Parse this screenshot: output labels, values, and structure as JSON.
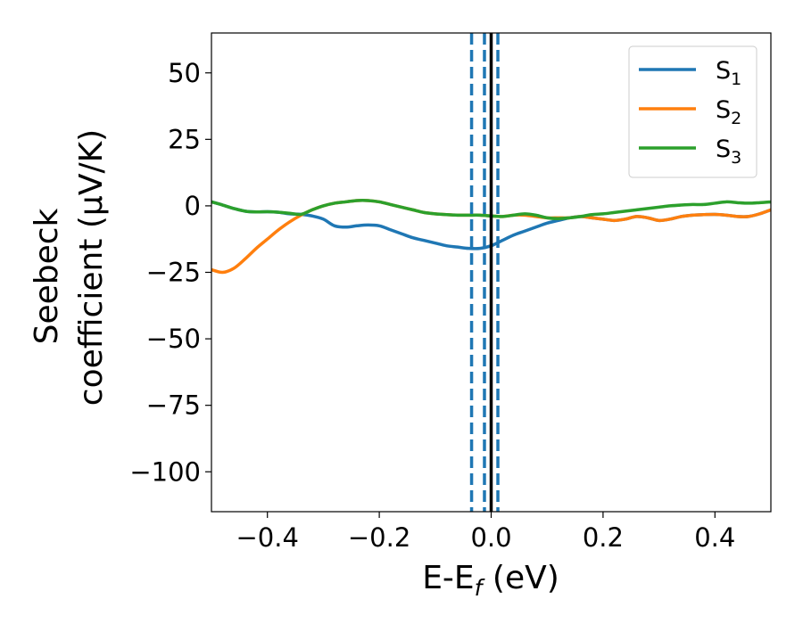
{
  "chart_data": {
    "type": "line",
    "xlabel": "E-E",
    "xlabel_sub": "f",
    "xlabel_unit": " (eV)",
    "ylabel_lines": [
      "Seebeck",
      "coefficient  (μV/K)"
    ],
    "xlim": [
      -0.5,
      0.5
    ],
    "ylim": [
      -115,
      65
    ],
    "xticks": [
      -0.4,
      -0.2,
      0.0,
      0.2,
      0.4
    ],
    "xtick_labels": [
      "−0.4",
      "−0.2",
      "0.0",
      "0.2",
      "0.4"
    ],
    "yticks": [
      50,
      25,
      0,
      -25,
      -50,
      -75,
      -100
    ],
    "ytick_labels": [
      "50",
      "25",
      "0",
      "−25",
      "−50",
      "−75",
      "−100"
    ],
    "grid": false,
    "legend_position": "top-right",
    "series": [
      {
        "name": "S",
        "sub": "1",
        "color": "#1f77b4",
        "x": [
          -0.5,
          -0.48,
          -0.46,
          -0.44,
          -0.42,
          -0.4,
          -0.38,
          -0.36,
          -0.34,
          -0.32,
          -0.3,
          -0.28,
          -0.26,
          -0.24,
          -0.22,
          -0.2,
          -0.18,
          -0.16,
          -0.14,
          -0.12,
          -0.1,
          -0.08,
          -0.06,
          -0.04,
          -0.02,
          0.0,
          0.02,
          0.04,
          0.06,
          0.08,
          0.1,
          0.12,
          0.14,
          0.16,
          0.18,
          0.2,
          0.22,
          0.24,
          0.26,
          0.28,
          0.3,
          0.32,
          0.34,
          0.36,
          0.38,
          0.4,
          0.42,
          0.44,
          0.46,
          0.48,
          0.5
        ],
        "y": [
          1.5,
          0.3,
          -1,
          -2,
          -2.3,
          -2.2,
          -2.4,
          -3,
          -3.2,
          -3.8,
          -5,
          -7.5,
          -8,
          -7.5,
          -7.2,
          -7.5,
          -9,
          -10.5,
          -12,
          -13,
          -14,
          -15,
          -15.5,
          -16,
          -16,
          -15,
          -13,
          -11,
          -9.5,
          -8,
          -6.5,
          -5.5,
          -4.5,
          -4,
          -4.5,
          -5,
          -5.5,
          -5,
          -4,
          -4.5,
          -5.5,
          -5,
          -4,
          -3.5,
          -3.3,
          -3.2,
          -3.5,
          -4,
          -4,
          -3,
          -1.5
        ]
      },
      {
        "name": "S",
        "sub": "2",
        "color": "#ff7f0e",
        "x": [
          -0.5,
          -0.48,
          -0.46,
          -0.44,
          -0.42,
          -0.4,
          -0.38,
          -0.36,
          -0.34,
          -0.32,
          -0.3,
          -0.28,
          -0.26,
          -0.24,
          -0.22,
          -0.2,
          -0.18,
          -0.16,
          -0.14,
          -0.12,
          -0.1,
          -0.08,
          -0.06,
          -0.04,
          -0.02,
          0.0,
          0.02,
          0.04,
          0.06,
          0.08,
          0.1,
          0.12,
          0.14,
          0.16,
          0.18,
          0.2,
          0.22,
          0.24,
          0.26,
          0.28,
          0.3,
          0.32,
          0.34,
          0.36,
          0.38,
          0.4,
          0.42,
          0.44,
          0.46,
          0.48,
          0.5
        ],
        "y": [
          -24,
          -25,
          -23.5,
          -20,
          -16,
          -12.5,
          -9,
          -6,
          -3.5,
          -1.5,
          0,
          1,
          1.5,
          2,
          2,
          1.5,
          0.5,
          -0.5,
          -1.5,
          -2.5,
          -3,
          -3.3,
          -3.5,
          -3.5,
          -3.5,
          -3.8,
          -4,
          -3.5,
          -3.5,
          -4,
          -4.5,
          -4.5,
          -4.5,
          -4,
          -4.5,
          -5,
          -5.5,
          -5,
          -4,
          -4.5,
          -5.5,
          -5,
          -4,
          -3.5,
          -3.3,
          -3.2,
          -3.5,
          -4,
          -4,
          -3,
          -1.5
        ]
      },
      {
        "name": "S",
        "sub": "3",
        "color": "#2ca02c",
        "x": [
          -0.5,
          -0.48,
          -0.46,
          -0.44,
          -0.42,
          -0.4,
          -0.38,
          -0.36,
          -0.34,
          -0.32,
          -0.3,
          -0.28,
          -0.26,
          -0.24,
          -0.22,
          -0.2,
          -0.18,
          -0.16,
          -0.14,
          -0.12,
          -0.1,
          -0.08,
          -0.06,
          -0.04,
          -0.02,
          0.0,
          0.02,
          0.04,
          0.06,
          0.08,
          0.1,
          0.12,
          0.14,
          0.16,
          0.18,
          0.2,
          0.22,
          0.24,
          0.26,
          0.28,
          0.3,
          0.32,
          0.34,
          0.36,
          0.38,
          0.4,
          0.42,
          0.44,
          0.46,
          0.48,
          0.5
        ],
        "y": [
          1.5,
          0.3,
          -1,
          -2,
          -2.3,
          -2.2,
          -2.4,
          -2.8,
          -3.2,
          -1.5,
          0,
          1,
          1.5,
          2,
          2,
          1.5,
          0.5,
          -0.5,
          -1.5,
          -2.5,
          -3,
          -3.3,
          -3.5,
          -3.5,
          -3.5,
          -3.8,
          -4,
          -3.5,
          -3,
          -3.5,
          -4.5,
          -4.8,
          -4.5,
          -4,
          -3.3,
          -3,
          -2.5,
          -2,
          -1.5,
          -1,
          -0.5,
          0,
          0.3,
          0.5,
          0.5,
          1,
          1.5,
          1.2,
          1,
          1.2,
          1.5
        ]
      }
    ],
    "vlines": [
      {
        "x": -0.035,
        "style": "dashed",
        "color": "#1f77b4"
      },
      {
        "x": -0.012,
        "style": "dashed",
        "color": "#1f77b4"
      },
      {
        "x": 0.012,
        "style": "dashed",
        "color": "#1f77b4"
      },
      {
        "x": 0.0,
        "style": "solid",
        "color": "#000000"
      }
    ]
  }
}
